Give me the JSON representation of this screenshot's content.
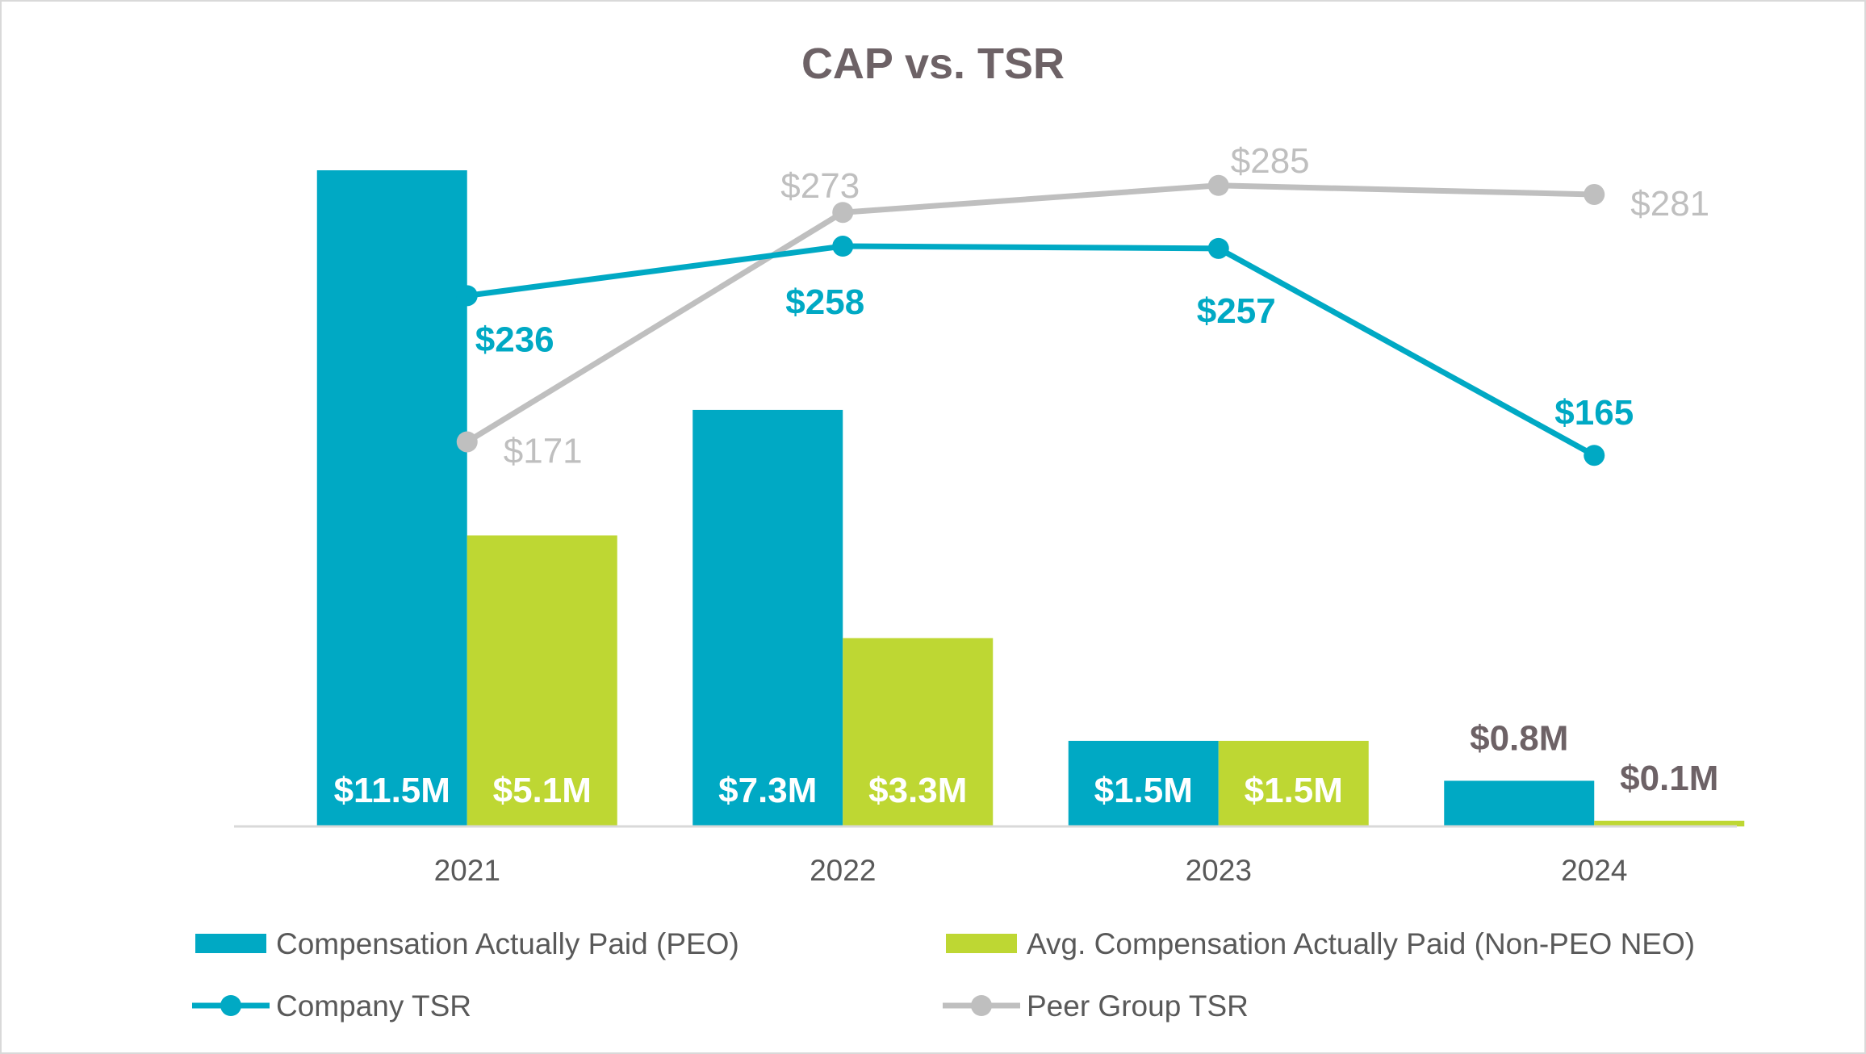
{
  "chart_data": {
    "type": "bar",
    "title": "CAP vs. TSR",
    "categories": [
      "2021",
      "2022",
      "2023",
      "2024"
    ],
    "bar_series": [
      {
        "name": "Compensation Actually Paid (PEO)",
        "values": [
          11.5,
          7.3,
          1.5,
          0.8
        ],
        "labels": [
          "$11.5M",
          "$7.3M",
          "$1.5M",
          "$0.8M"
        ],
        "color": "#00a9c4"
      },
      {
        "name": "Avg. Compensation Actually Paid (Non-PEO NEO)",
        "values": [
          5.1,
          3.3,
          1.5,
          0.1
        ],
        "labels": [
          "$5.1M",
          "$3.3M",
          "$1.5M",
          "$0.1M"
        ],
        "color": "#bed733"
      }
    ],
    "line_series": [
      {
        "name": "Company TSR",
        "values": [
          236,
          258,
          257,
          165
        ],
        "labels": [
          "$236",
          "$258",
          "$257",
          "$165"
        ],
        "color": "#00a9c4"
      },
      {
        "name": "Peer Group TSR",
        "values": [
          171,
          273,
          285,
          281
        ],
        "labels": [
          "$171",
          "$273",
          "$285",
          "$281"
        ],
        "color": "#bfbfbf"
      }
    ],
    "bar_axis": {
      "unit": "$M",
      "range": [
        0,
        11.5
      ]
    },
    "line_axis": {
      "unit": "$",
      "range": [
        0,
        300
      ]
    },
    "grid": false,
    "legend_position": "bottom",
    "axis_color": "#d9d9d9",
    "label_color_outside": "#6d6266"
  }
}
